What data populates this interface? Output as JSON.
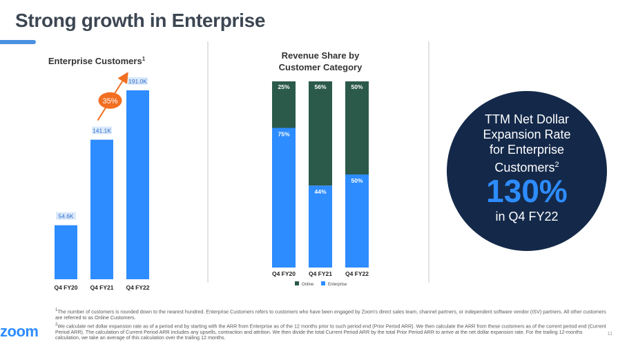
{
  "page": {
    "title": "Strong growth in Enterprise",
    "logo": "zoom",
    "page_number": "11"
  },
  "colors": {
    "blue": "#2d8cff",
    "dark_green": "#2b5a4b",
    "navy": "#14294a",
    "orange": "#f26f21"
  },
  "chart_data": [
    {
      "type": "bar",
      "title": "Enterprise Customers",
      "title_sup": "1",
      "categories": [
        "Q4 FY20",
        "Q4 FY21",
        "Q4 FY22"
      ],
      "values": [
        54.6,
        141.1,
        191.0
      ],
      "value_labels": [
        "54.6K",
        "141.1K",
        "191.0K"
      ],
      "ylim": [
        0,
        191.0
      ],
      "annotation": {
        "text": "35%",
        "from": "Q4 FY21",
        "to": "Q4 FY22"
      }
    },
    {
      "type": "bar",
      "stacked": true,
      "percent": true,
      "title": "Revenue Share by Customer Category",
      "categories": [
        "Q4 FY20",
        "Q4 FY21",
        "Q4 FY22"
      ],
      "series": [
        {
          "name": "Enterprise",
          "values": [
            75,
            44,
            50
          ],
          "labels": [
            "75%",
            "44%",
            "50%"
          ],
          "color": "#2d8cff"
        },
        {
          "name": "Online",
          "values": [
            25,
            56,
            50
          ],
          "labels": [
            "25%",
            "56%",
            "50%"
          ],
          "color": "#2b5a4b"
        }
      ],
      "legend": {
        "position": "bottom",
        "entries": [
          "Online",
          "Enterprise"
        ]
      }
    }
  ],
  "callout": {
    "line1": "TTM Net Dollar",
    "line2": "Expansion Rate",
    "line3": "for Enterprise",
    "line4": "Customers",
    "line4_sup": "2",
    "value": "130%",
    "period": "in Q4 FY22"
  },
  "footnotes": {
    "fn1_sup": "1",
    "fn1": "The number of customers is rounded down to the nearest hundred. Enterprise Customers refers to customers who have been engaged by Zoom's direct sales team, channel partners, or independent software vendor (ISV) partners. All other customers are referred to as Online Customers.",
    "fn2_sup": "2",
    "fn2": "We calculate net dollar expansion rate as of a period end by starting with the ARR from Enterprise as of the 12 months prior to such period end (Prior Period ARR). We then calculate the ARR from these customers as of the current period end (Current Period ARR). The calculation of Current Period ARR includes any upsells, contraction and attrition. We then divide the total Current Period ARR by the total Prior Period ARR to arrive at the net dollar expansion rate. For the trailing 12-months calculation, we take an average of this calculation over the trailing 12 months."
  }
}
